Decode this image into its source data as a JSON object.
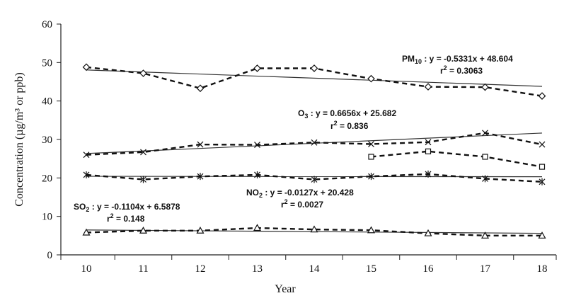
{
  "chart_data": {
    "type": "line",
    "xlabel": "Year",
    "ylabel": "Concentration (µg/m³ or ppb)",
    "xlim": [
      9.5,
      18.5
    ],
    "ylim": [
      0,
      60
    ],
    "x_ticks": [
      10,
      11,
      12,
      13,
      14,
      15,
      16,
      17,
      18
    ],
    "y_ticks": [
      0,
      10,
      20,
      30,
      40,
      50,
      60
    ],
    "grid": false,
    "legend": "none",
    "series": [
      {
        "marker": "diamond",
        "x": [
          10,
          11,
          12,
          13,
          14,
          15,
          16,
          17,
          18
        ],
        "values": [
          48.8,
          47.2,
          43.3,
          48.5,
          48.5,
          45.8,
          43.7,
          43.6,
          41.3
        ],
        "trend": {
          "slope": -0.5331,
          "intercept": 48.604
        },
        "annotation": {
          "name": "PM",
          "sub": "10",
          "equation": ": y = -0.5331x + 48.604",
          "r2": "= 0.3063"
        }
      },
      {
        "marker": "x",
        "x": [
          10,
          11,
          12,
          13,
          14,
          15,
          16,
          17,
          18
        ],
        "values": [
          26.0,
          26.7,
          28.7,
          28.6,
          29.2,
          28.8,
          29.3,
          31.7,
          28.7
        ],
        "trend": {
          "slope": 0.6656,
          "intercept": 25.682
        },
        "annotation": {
          "name": "O",
          "sub": "3",
          "equation": ": y = 0.6656x + 25.682",
          "r2": "= 0.836"
        }
      },
      {
        "marker": "square",
        "x": [
          15,
          16,
          17,
          18
        ],
        "values": [
          25.5,
          26.9,
          25.5,
          22.9
        ]
      },
      {
        "marker": "asterisk",
        "x": [
          10,
          11,
          12,
          13,
          14,
          15,
          16,
          17,
          18
        ],
        "values": [
          20.8,
          19.6,
          20.4,
          20.8,
          19.6,
          20.4,
          21.0,
          19.8,
          19.0
        ],
        "trend": {
          "slope": -0.0127,
          "intercept": 20.428
        },
        "annotation": {
          "name": "NO",
          "sub": "2",
          "equation": ": y = -0.0127x + 20.428",
          "r2": "= 0.0027"
        }
      },
      {
        "marker": "triangle",
        "x": [
          10,
          11,
          12,
          13,
          14,
          15,
          16,
          17,
          18
        ],
        "values": [
          5.8,
          6.3,
          6.3,
          7.0,
          6.6,
          6.4,
          5.6,
          5.0,
          5.0
        ],
        "trend": {
          "slope": -0.1104,
          "intercept": 6.5878
        },
        "annotation": {
          "name": "SO",
          "sub": "2",
          "equation": ": y = -0.1104x + 6.5878",
          "r2": "= 0.148"
        }
      }
    ]
  }
}
